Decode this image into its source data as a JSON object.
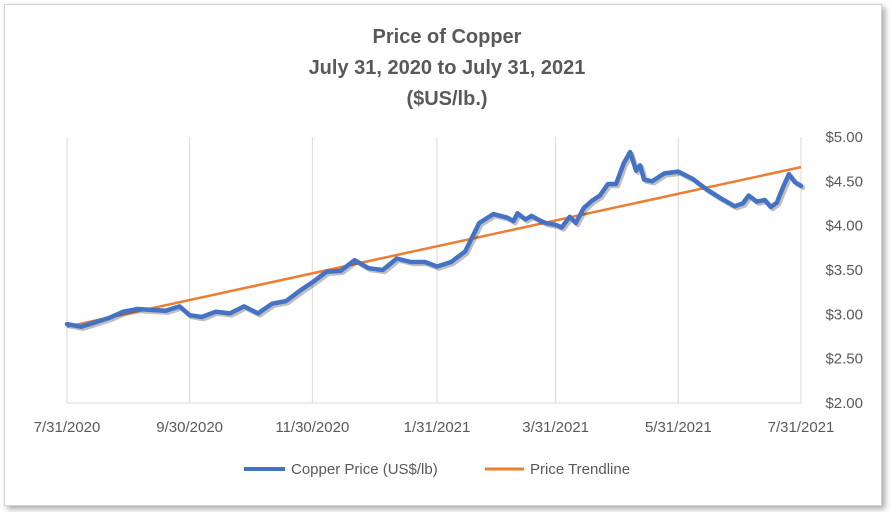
{
  "chart_data": {
    "type": "line",
    "title": [
      "Price of Copper",
      "July 31, 2020 to July 31, 2021",
      "($US/lb.)"
    ],
    "xlabel": "",
    "ylabel": "",
    "x_ticks": [
      "7/31/2020",
      "9/30/2020",
      "11/30/2020",
      "1/31/2021",
      "3/31/2021",
      "5/31/2021",
      "7/31/2021"
    ],
    "y_ticks": [
      "$2.00",
      "$2.50",
      "$3.00",
      "$3.50",
      "$4.00",
      "$4.50",
      "$5.00"
    ],
    "ylim": [
      2.0,
      5.0
    ],
    "xlim": [
      "2020-07-31",
      "2021-07-31"
    ],
    "grid": "vertical",
    "legend_position": "bottom",
    "series": [
      {
        "name": "Copper Price (US$/lb)",
        "color": "#4472c4",
        "points": [
          [
            "2020-07-31",
            2.89
          ],
          [
            "2020-08-07",
            2.86
          ],
          [
            "2020-08-14",
            2.91
          ],
          [
            "2020-08-21",
            2.96
          ],
          [
            "2020-08-28",
            3.03
          ],
          [
            "2020-09-04",
            3.06
          ],
          [
            "2020-09-11",
            3.05
          ],
          [
            "2020-09-18",
            3.04
          ],
          [
            "2020-09-25",
            3.09
          ],
          [
            "2020-09-30",
            2.99
          ],
          [
            "2020-10-06",
            2.97
          ],
          [
            "2020-10-13",
            3.03
          ],
          [
            "2020-10-20",
            3.01
          ],
          [
            "2020-10-27",
            3.09
          ],
          [
            "2020-11-03",
            3.01
          ],
          [
            "2020-11-10",
            3.12
          ],
          [
            "2020-11-17",
            3.15
          ],
          [
            "2020-11-24",
            3.27
          ],
          [
            "2020-11-30",
            3.36
          ],
          [
            "2020-12-07",
            3.48
          ],
          [
            "2020-12-14",
            3.49
          ],
          [
            "2020-12-21",
            3.61
          ],
          [
            "2020-12-28",
            3.52
          ],
          [
            "2021-01-04",
            3.5
          ],
          [
            "2021-01-11",
            3.63
          ],
          [
            "2021-01-18",
            3.59
          ],
          [
            "2021-01-25",
            3.59
          ],
          [
            "2021-01-31",
            3.54
          ],
          [
            "2021-02-07",
            3.59
          ],
          [
            "2021-02-14",
            3.71
          ],
          [
            "2021-02-21",
            4.03
          ],
          [
            "2021-02-28",
            4.13
          ],
          [
            "2021-03-07",
            4.09
          ],
          [
            "2021-03-10",
            4.05
          ],
          [
            "2021-03-12",
            4.14
          ],
          [
            "2021-03-16",
            4.07
          ],
          [
            "2021-03-19",
            4.11
          ],
          [
            "2021-03-23",
            4.06
          ],
          [
            "2021-03-26",
            4.03
          ],
          [
            "2021-03-31",
            4.01
          ],
          [
            "2021-04-03",
            3.98
          ],
          [
            "2021-04-07",
            4.1
          ],
          [
            "2021-04-10",
            4.03
          ],
          [
            "2021-04-14",
            4.2
          ],
          [
            "2021-04-18",
            4.28
          ],
          [
            "2021-04-22",
            4.34
          ],
          [
            "2021-04-26",
            4.47
          ],
          [
            "2021-04-30",
            4.47
          ],
          [
            "2021-05-04",
            4.71
          ],
          [
            "2021-05-07",
            4.83
          ],
          [
            "2021-05-10",
            4.62
          ],
          [
            "2021-05-12",
            4.68
          ],
          [
            "2021-05-14",
            4.52
          ],
          [
            "2021-05-18",
            4.5
          ],
          [
            "2021-05-24",
            4.59
          ],
          [
            "2021-05-31",
            4.61
          ],
          [
            "2021-06-07",
            4.53
          ],
          [
            "2021-06-14",
            4.41
          ],
          [
            "2021-06-21",
            4.31
          ],
          [
            "2021-06-28",
            4.22
          ],
          [
            "2021-07-02",
            4.25
          ],
          [
            "2021-07-05",
            4.34
          ],
          [
            "2021-07-09",
            4.27
          ],
          [
            "2021-07-13",
            4.29
          ],
          [
            "2021-07-16",
            4.21
          ],
          [
            "2021-07-19",
            4.26
          ],
          [
            "2021-07-22",
            4.43
          ],
          [
            "2021-07-25",
            4.58
          ],
          [
            "2021-07-28",
            4.49
          ],
          [
            "2021-07-31",
            4.45
          ]
        ]
      },
      {
        "name": "Price Trendline",
        "color": "#ed7d31",
        "points": [
          [
            "2020-07-31",
            2.86
          ],
          [
            "2021-07-31",
            4.66
          ]
        ]
      }
    ]
  }
}
